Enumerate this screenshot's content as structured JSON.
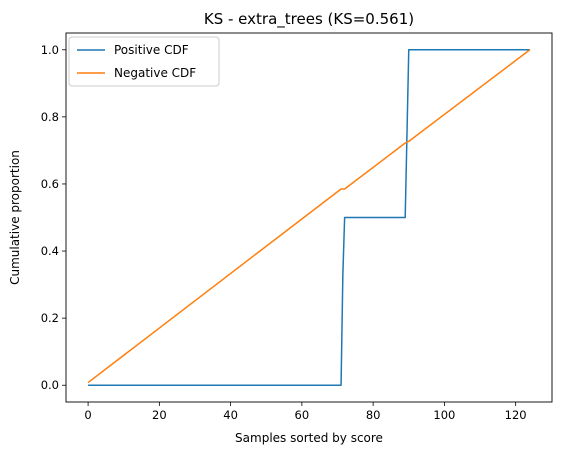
{
  "chart_data": {
    "type": "line",
    "title": "KS - extra_trees (KS=0.561)",
    "xlabel": "Samples sorted by score",
    "ylabel": "Cumulative proportion",
    "xlim": [
      -6.2,
      130.2
    ],
    "ylim": [
      -0.05,
      1.05
    ],
    "x_ticks": [
      0,
      20,
      40,
      60,
      80,
      100,
      120
    ],
    "y_ticks": [
      0.0,
      0.2,
      0.4,
      0.6,
      0.8,
      1.0
    ],
    "x_tick_labels": [
      "0",
      "20",
      "40",
      "60",
      "80",
      "100",
      "120"
    ],
    "y_tick_labels": [
      "0.0",
      "0.2",
      "0.4",
      "0.6",
      "0.8",
      "1.0"
    ],
    "grid": false,
    "legend_position": "top-left",
    "series": [
      {
        "name": "Positive CDF",
        "color": "#1f77b4",
        "points": [
          [
            0,
            0.0
          ],
          [
            71,
            0.0
          ],
          [
            71.5,
            0.33
          ],
          [
            72,
            0.5
          ],
          [
            89,
            0.5
          ],
          [
            90,
            1.0
          ],
          [
            124,
            1.0
          ]
        ]
      },
      {
        "name": "Negative CDF",
        "color": "#ff7f0e",
        "points": [
          [
            0,
            0.008
          ],
          [
            71,
            0.585
          ],
          [
            72,
            0.585
          ],
          [
            89,
            0.722
          ],
          [
            90,
            0.727
          ],
          [
            124,
            1.0
          ]
        ]
      }
    ]
  }
}
